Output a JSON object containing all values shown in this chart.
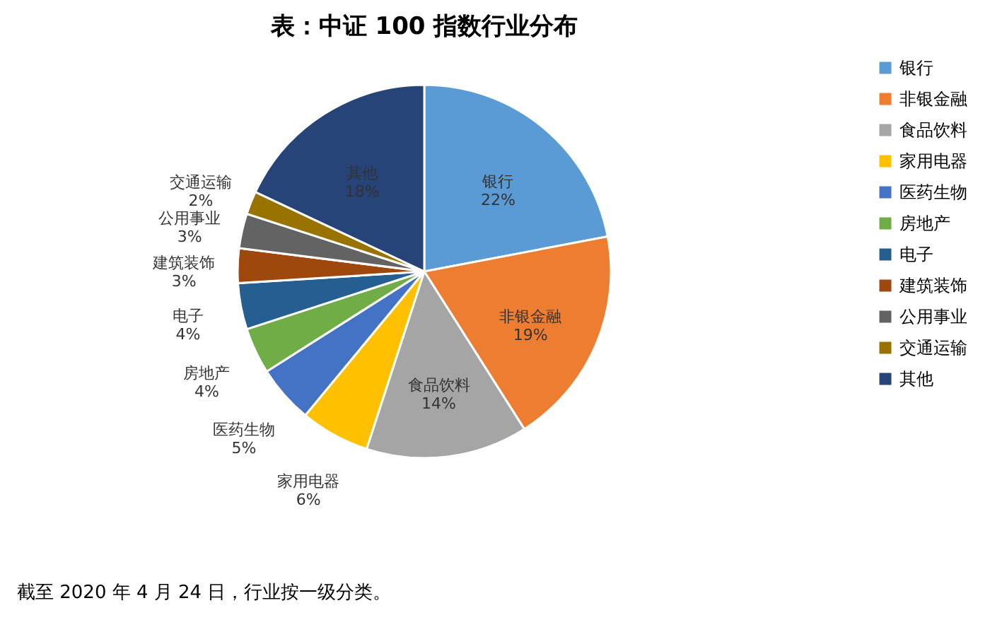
{
  "chart_data": {
    "type": "pie",
    "title": "表：中证 100 指数行业分布",
    "categories": [
      "银行",
      "非银金融",
      "食品饮料",
      "家用电器",
      "医药生物",
      "房地产",
      "电子",
      "建筑装饰",
      "公用事业",
      "交通运输",
      "其他"
    ],
    "values": [
      22,
      19,
      14,
      6,
      5,
      4,
      4,
      3,
      3,
      2,
      18
    ],
    "value_labels": [
      "22%",
      "19%",
      "14%",
      "6%",
      "5%",
      "4%",
      "4%",
      "3%",
      "3%",
      "2%",
      "18%"
    ],
    "colors": [
      "#5b9bd5",
      "#ed7d31",
      "#a5a5a5",
      "#ffc000",
      "#4472c4",
      "#70ad47",
      "#255e91",
      "#9e480e",
      "#636363",
      "#997300",
      "#264478"
    ],
    "legend": "right",
    "annotations": [
      "截至 2020 年 4 月 24 日，行业按一级分类。"
    ]
  }
}
